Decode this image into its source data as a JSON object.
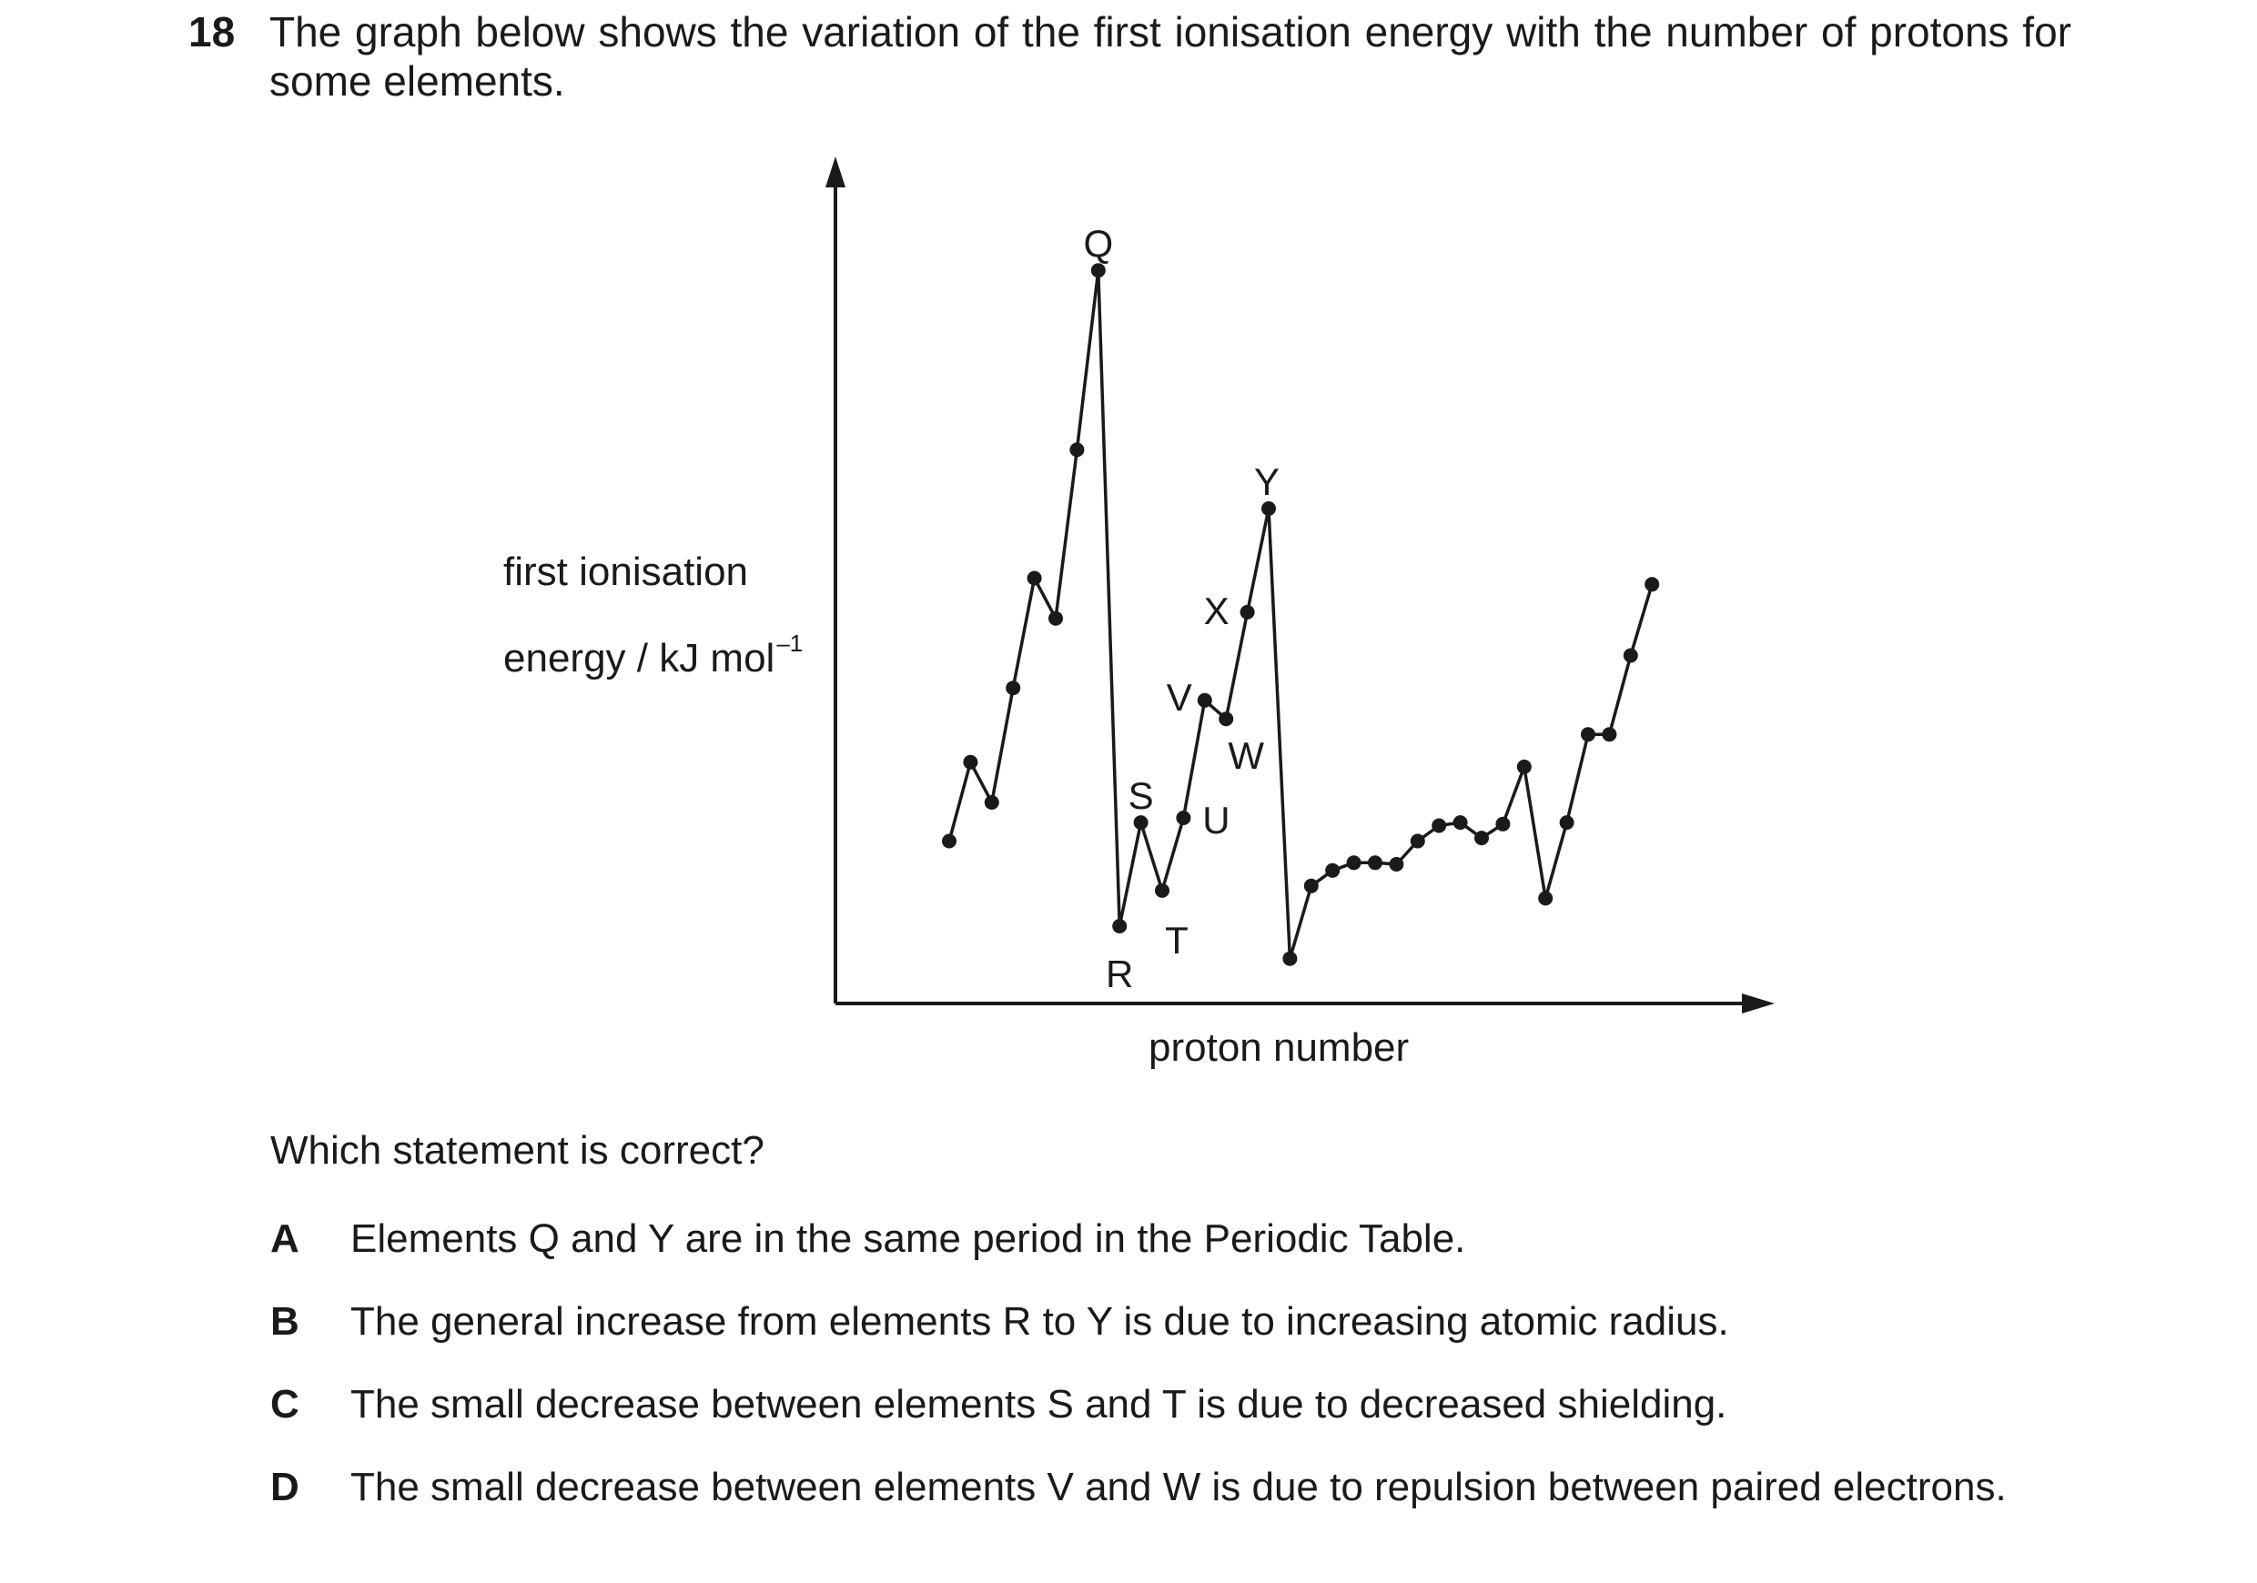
{
  "question": {
    "number": "18",
    "stem_line1": "The graph below shows the variation of the first ionisation energy with the number of protons for",
    "stem_line2": "some elements.",
    "prompt": "Which statement is correct?"
  },
  "chart_data": {
    "type": "line",
    "ylabel_line1": "first ionisation",
    "ylabel_line2": "energy / kJ mol",
    "ylabel_superscript": "–1",
    "xlabel": "proton number",
    "x_ticks": "none",
    "y_ticks": "none",
    "grid": false,
    "series": [
      {
        "points": [
          {
            "x": 1,
            "y": 210
          },
          {
            "x": 2,
            "y": 312
          },
          {
            "x": 3,
            "y": 260
          },
          {
            "x": 4,
            "y": 408
          },
          {
            "x": 5,
            "y": 550
          },
          {
            "x": 6,
            "y": 498
          },
          {
            "x": 7,
            "y": 716
          },
          {
            "x": 8,
            "y": 948,
            "label": "Q"
          },
          {
            "x": 9,
            "y": 100,
            "label": "R"
          },
          {
            "x": 10,
            "y": 234,
            "label": "S"
          },
          {
            "x": 11,
            "y": 146,
            "label": "T"
          },
          {
            "x": 12,
            "y": 240,
            "label": "U"
          },
          {
            "x": 13,
            "y": 392,
            "label": "V"
          },
          {
            "x": 14,
            "y": 368,
            "label": "W"
          },
          {
            "x": 15,
            "y": 506,
            "label": "X"
          },
          {
            "x": 16,
            "y": 640,
            "label": "Y"
          },
          {
            "x": 17,
            "y": 58
          },
          {
            "x": 18,
            "y": 152
          },
          {
            "x": 19,
            "y": 172
          },
          {
            "x": 20,
            "y": 182
          },
          {
            "x": 21,
            "y": 182
          },
          {
            "x": 22,
            "y": 180
          },
          {
            "x": 23,
            "y": 210
          },
          {
            "x": 24,
            "y": 230
          },
          {
            "x": 25,
            "y": 234
          },
          {
            "x": 26,
            "y": 214
          },
          {
            "x": 27,
            "y": 232
          },
          {
            "x": 28,
            "y": 306
          },
          {
            "x": 29,
            "y": 136
          },
          {
            "x": 30,
            "y": 234
          },
          {
            "x": 31,
            "y": 348
          },
          {
            "x": 32,
            "y": 348
          },
          {
            "x": 33,
            "y": 450
          },
          {
            "x": 34,
            "y": 542
          }
        ]
      }
    ]
  },
  "options": [
    {
      "letter": "A",
      "text": "Elements Q and Y are in the same period in the Periodic Table."
    },
    {
      "letter": "B",
      "text": "The general increase from elements R to Y is due to increasing atomic radius."
    },
    {
      "letter": "C",
      "text": "The small decrease between elements S and T is due to decreased shielding."
    },
    {
      "letter": "D",
      "text": "The small decrease between elements V and W is due to repulsion between paired electrons."
    }
  ]
}
